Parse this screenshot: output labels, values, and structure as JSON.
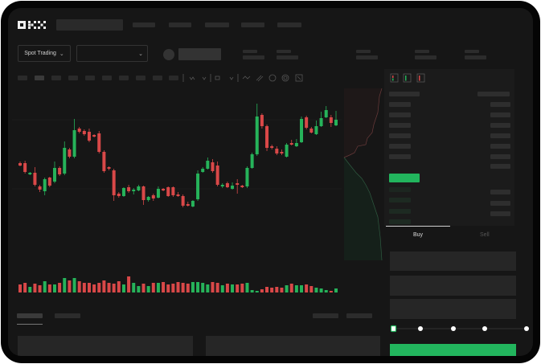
{
  "header": {
    "logo": "OKX"
  },
  "selectors": {
    "market_type": "Spot Trading",
    "pair": ""
  },
  "order_form": {
    "tabs": [
      {
        "label": "Buy",
        "active": true
      },
      {
        "label": "Sell",
        "active": false
      }
    ],
    "leverage_steps": 5,
    "selected_step": 0
  },
  "colors": {
    "up": "#26b35a",
    "down": "#d94848",
    "background": "#161616",
    "panel": "#1c1c1c",
    "accent_button": "#22b55d"
  },
  "chart": {
    "type": "candlestick",
    "candles": [
      [
        97,
        99,
        93,
        94
      ],
      [
        97,
        100,
        84,
        86
      ],
      [
        83,
        86,
        82,
        85
      ],
      [
        85,
        92,
        68,
        70
      ],
      [
        68,
        70,
        61,
        64
      ],
      [
        62,
        79,
        57,
        77
      ],
      [
        79,
        80,
        67,
        69
      ],
      [
        74,
        99,
        72,
        91
      ],
      [
        91,
        93,
        81,
        83
      ],
      [
        84,
        124,
        82,
        116
      ],
      [
        114,
        116,
        103,
        105
      ],
      [
        105,
        152,
        103,
        138
      ],
      [
        140,
        142,
        134,
        136
      ],
      [
        137,
        139,
        131,
        133
      ],
      [
        136,
        140,
        123,
        125
      ],
      [
        132,
        133,
        129,
        130
      ],
      [
        134,
        137,
        109,
        111
      ],
      [
        111,
        113,
        85,
        87
      ],
      [
        92,
        93,
        88,
        90
      ],
      [
        88,
        90,
        50,
        57
      ],
      [
        59,
        61,
        54,
        56
      ],
      [
        56,
        67,
        55,
        66
      ],
      [
        67,
        70,
        60,
        62
      ],
      [
        62,
        66,
        58,
        64
      ],
      [
        63,
        70,
        62,
        68
      ],
      [
        68,
        69,
        45,
        51
      ],
      [
        51,
        56,
        49,
        55
      ],
      [
        57,
        59,
        50,
        53
      ],
      [
        54,
        68,
        53,
        65
      ],
      [
        65,
        66,
        62,
        63
      ],
      [
        67,
        68,
        55,
        56
      ],
      [
        67,
        68,
        55,
        57
      ],
      [
        58,
        61,
        55,
        56
      ],
      [
        56,
        58,
        42,
        44
      ],
      [
        46,
        49,
        43,
        44
      ],
      [
        43,
        51,
        42,
        50
      ],
      [
        52,
        88,
        50,
        84
      ],
      [
        86,
        92,
        85,
        90
      ],
      [
        90,
        104,
        89,
        100
      ],
      [
        98,
        102,
        85,
        87
      ],
      [
        94,
        99,
        68,
        70
      ],
      [
        68,
        72,
        66,
        70
      ],
      [
        72,
        74,
        66,
        67
      ],
      [
        65,
        73,
        64,
        69
      ],
      [
        72,
        77,
        59,
        70
      ],
      [
        69,
        70,
        66,
        67
      ],
      [
        68,
        93,
        66,
        91
      ],
      [
        91,
        110,
        90,
        108
      ],
      [
        108,
        171,
        106,
        155
      ],
      [
        157,
        159,
        140,
        143
      ],
      [
        143,
        145,
        112,
        116
      ],
      [
        118,
        120,
        114,
        116
      ],
      [
        115,
        118,
        107,
        109
      ],
      [
        111,
        114,
        107,
        109
      ],
      [
        105,
        122,
        104,
        120
      ],
      [
        122,
        126,
        119,
        120
      ],
      [
        118,
        127,
        117,
        122
      ],
      [
        123,
        155,
        122,
        152
      ],
      [
        154,
        156,
        139,
        141
      ],
      [
        140,
        142,
        134,
        135
      ],
      [
        133,
        150,
        132,
        143
      ],
      [
        143,
        161,
        142,
        153
      ],
      [
        154,
        168,
        153,
        163
      ],
      [
        154,
        157,
        142,
        147
      ],
      [
        144,
        162,
        143,
        151
      ]
    ],
    "volumes": [
      10,
      12,
      7,
      11,
      9,
      14,
      10,
      10,
      12,
      18,
      15,
      18,
      14,
      12,
      12,
      10,
      12,
      15,
      12,
      11,
      14,
      10,
      20,
      12,
      8,
      11,
      8,
      12,
      12,
      13,
      10,
      11,
      13,
      12,
      11,
      13,
      13,
      12,
      10,
      13,
      12,
      9,
      11,
      10,
      10,
      11,
      12,
      3,
      2,
      4,
      7,
      6,
      7,
      6,
      9,
      11,
      9,
      9,
      10,
      8,
      6,
      5,
      3,
      2,
      5
    ]
  }
}
